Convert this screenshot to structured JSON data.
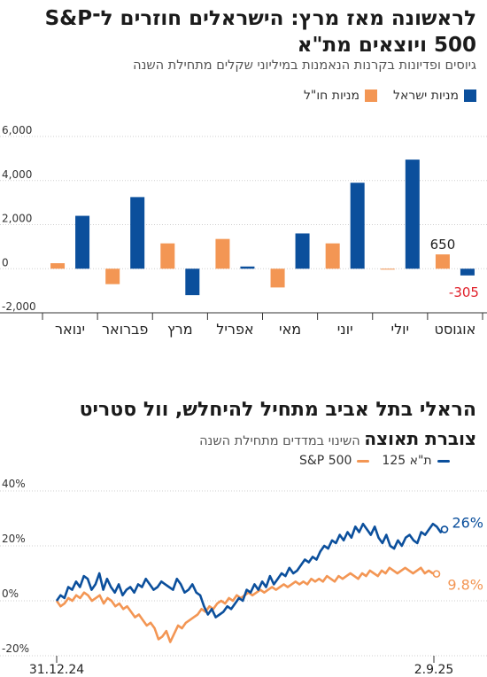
{
  "header": {
    "title1": "לראשונה מאז מרץ: הישראלים חוזרים ל־S&P 500 ויוצאים מת\"א",
    "subtitle1": "גיוסים ופדיונות בקרנות הנאמנות במיליוני שקלים מתחילת השנה",
    "title2": "הראלי בתל אביב מתחיל להיחלש, וול סטריט",
    "subtitle2_bold": "צוברת תאוצה",
    "subtitle2_rest": "השינוי במדדים מתחילת השנה"
  },
  "colors": {
    "blue": "#0b4f9c",
    "orange": "#f39654",
    "red": "#e0202a",
    "grid": "#cfcfcf"
  },
  "chart_data": [
    {
      "type": "bar",
      "categories": [
        "ינואר",
        "פברואר",
        "מרץ",
        "אפריל",
        "מאי",
        "יוני",
        "יולי",
        "אוגוסט"
      ],
      "series": [
        {
          "name": "מניות ישראל",
          "color": "#0b4f9c",
          "values": [
            2400,
            3250,
            -1200,
            100,
            1600,
            3900,
            4950,
            -305
          ]
        },
        {
          "name": "מניות חו\"ל",
          "color": "#f39654",
          "values": [
            250,
            -700,
            1150,
            1350,
            -850,
            1150,
            -30,
            650
          ]
        }
      ],
      "ylim": [
        -2000,
        6000
      ],
      "yticks": [
        "6,000",
        "4,000",
        "2,000",
        "0",
        "-2,000"
      ],
      "annotations": [
        {
          "text": "650",
          "series": "מניות חו\"ל",
          "category": "אוגוסט"
        },
        {
          "text": "-305",
          "series": "מניות ישראל",
          "category": "אוגוסט"
        }
      ]
    },
    {
      "type": "line",
      "x_labels": [
        "31.12.24",
        "2.9.25"
      ],
      "yticks": [
        "40%",
        "20%",
        "0%",
        "-20%"
      ],
      "ylim": [
        -20,
        40
      ],
      "series": [
        {
          "name": "ת\"א 125",
          "color": "#0b4f9c",
          "end_label": "26%",
          "values": [
            0,
            2,
            1,
            5,
            4,
            7,
            5,
            9,
            8,
            4,
            6,
            10,
            4,
            8,
            5,
            3,
            6,
            2,
            4,
            5,
            3,
            6,
            5,
            8,
            6,
            4,
            5,
            7,
            6,
            5,
            4,
            8,
            6,
            3,
            4,
            6,
            3,
            2,
            -2,
            -5,
            -3,
            -6,
            -5,
            -4,
            -2,
            -3,
            -1,
            1,
            0,
            4,
            3,
            6,
            4,
            7,
            5,
            9,
            6,
            8,
            10,
            9,
            12,
            10,
            11,
            13,
            15,
            14,
            16,
            15,
            18,
            20,
            19,
            22,
            21,
            24,
            22,
            25,
            23,
            27,
            25,
            28,
            26,
            24,
            27,
            23,
            21,
            24,
            20,
            19,
            22,
            20,
            23,
            24,
            22,
            21,
            25,
            24,
            26,
            28,
            27,
            25,
            26
          ]
        },
        {
          "name": "S&P 500",
          "color": "#f39654",
          "end_label": "9.8%",
          "values": [
            0,
            -2,
            -1,
            1,
            0,
            2,
            1,
            3,
            2,
            0,
            1,
            2,
            -1,
            1,
            0,
            -2,
            -1,
            -3,
            -2,
            -4,
            -6,
            -5,
            -7,
            -9,
            -8,
            -10,
            -14,
            -13,
            -11,
            -15,
            -12,
            -9,
            -10,
            -8,
            -7,
            -6,
            -5,
            -3,
            -4,
            -2,
            -3,
            -1,
            0,
            -1,
            1,
            0,
            2,
            1,
            2,
            3,
            2,
            3,
            4,
            3,
            4,
            5,
            4,
            5,
            6,
            5,
            6,
            7,
            6,
            7,
            6,
            8,
            7,
            8,
            7,
            9,
            8,
            7,
            9,
            8,
            9,
            10,
            9,
            8,
            10,
            9,
            11,
            10,
            9,
            11,
            10,
            12,
            11,
            10,
            11,
            12,
            11,
            10,
            11,
            12,
            10,
            11,
            10,
            9.8
          ]
        }
      ]
    }
  ]
}
